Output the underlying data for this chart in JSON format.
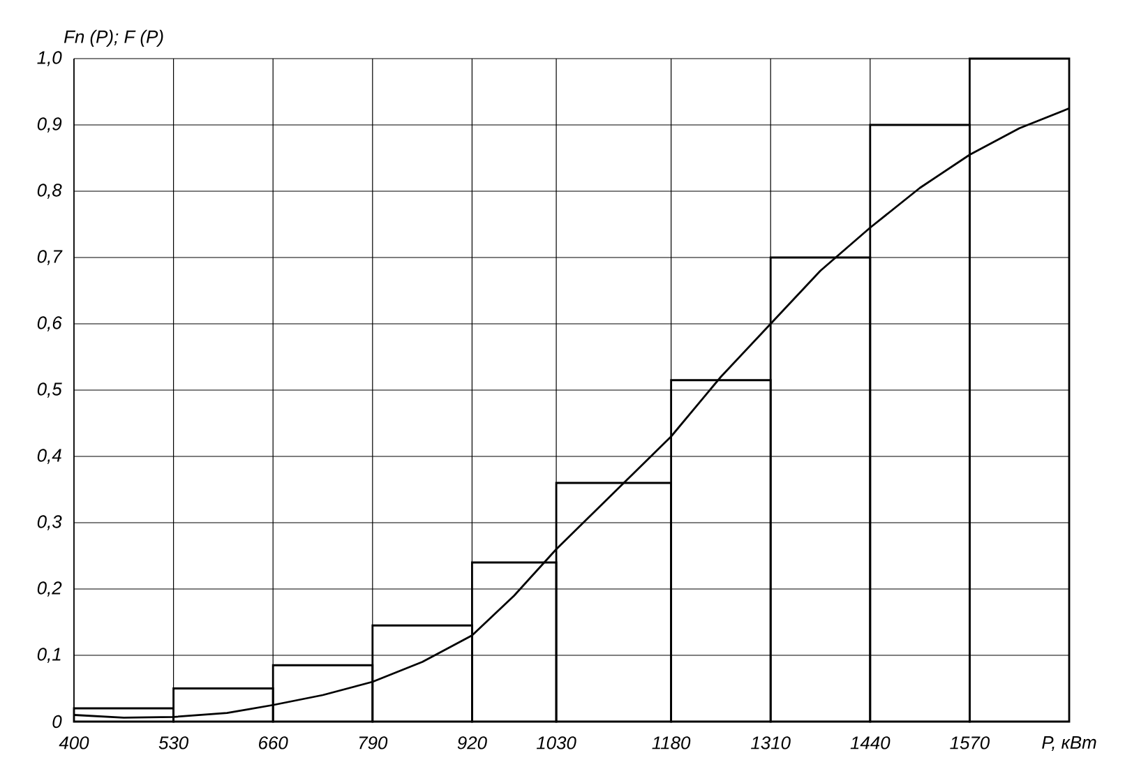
{
  "chart_data": {
    "type": "histogram",
    "xlabel": "P, кВт",
    "ylabel": "Fn (P);  F (P)",
    "bins": [
      400,
      530,
      660,
      790,
      920,
      1030,
      1180,
      1310,
      1440,
      1570,
      1700
    ],
    "values": [
      0.02,
      0.05,
      0.085,
      0.145,
      0.24,
      0.36,
      0.515,
      0.7,
      0.9,
      1.0
    ],
    "color": "#000000",
    "series": [
      {
        "type": "line",
        "color": "#000000",
        "x": [
          400,
          465,
          530,
          600,
          660,
          725,
          790,
          855,
          920,
          975,
          1030,
          1105,
          1180,
          1245,
          1310,
          1375,
          1440,
          1505,
          1570,
          1635,
          1700
        ],
        "values": [
          0.01,
          0.006,
          0.007,
          0.013,
          0.025,
          0.04,
          0.06,
          0.09,
          0.13,
          0.19,
          0.26,
          0.345,
          0.43,
          0.52,
          0.6,
          0.68,
          0.745,
          0.805,
          0.855,
          0.895,
          0.925
        ]
      }
    ],
    "xlim": [
      400,
      1700
    ],
    "ylim": [
      0,
      1.0
    ],
    "xticks": [
      400,
      530,
      660,
      790,
      920,
      1030,
      1180,
      1310,
      1440,
      1570
    ],
    "yticks": [
      0,
      {
        "value": 0.1,
        "label": "0,1"
      },
      {
        "value": 0.2,
        "label": "0,2"
      },
      {
        "value": 0.3,
        "label": "0,3"
      },
      {
        "value": 0.4,
        "label": "0,4"
      },
      {
        "value": 0.5,
        "label": "0,5"
      },
      {
        "value": 0.6,
        "label": "0,6"
      },
      {
        "value": 0.7,
        "label": "0,7"
      },
      {
        "value": 0.8,
        "label": "0,8"
      },
      {
        "value": 0.9,
        "label": "0,9"
      },
      {
        "value": 1.0,
        "label": "1,0"
      }
    ],
    "grid": true,
    "line_style": "solid",
    "marker": "none"
  }
}
